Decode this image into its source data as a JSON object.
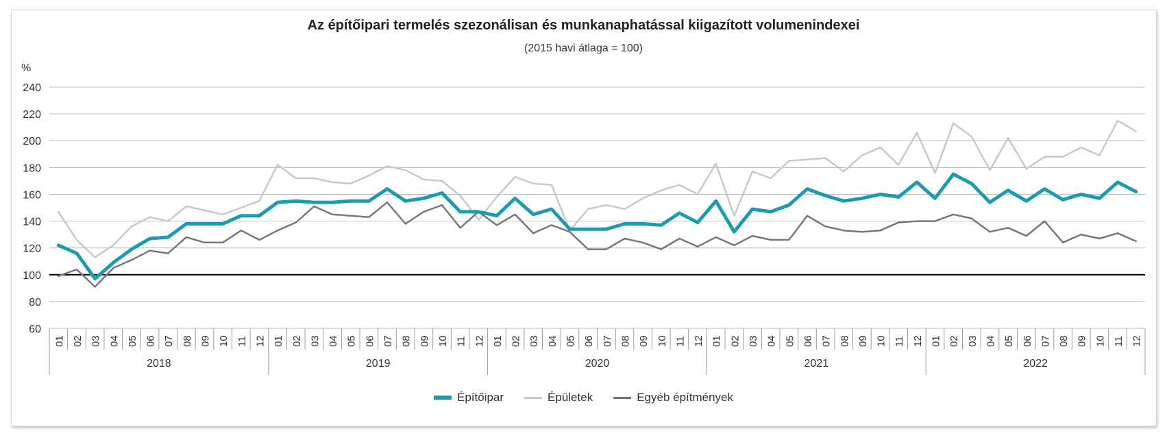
{
  "chart_data": {
    "type": "line",
    "title": "Az építőipari termelés szezonálisan és munkanaphatással kiigazított volumenindexei",
    "subtitle": "(2015 havi átlaga = 100)",
    "ylabel": "%",
    "ylim": [
      60,
      240
    ],
    "yticks": [
      "60",
      "80",
      "100",
      "120",
      "140",
      "160",
      "180",
      "200",
      "220",
      "240"
    ],
    "reference_line": 100,
    "grid": true,
    "legend_position": "bottom",
    "months": [
      "01",
      "02",
      "03",
      "04",
      "05",
      "06",
      "07",
      "08",
      "09",
      "10",
      "11",
      "12"
    ],
    "years": [
      "2018",
      "2019",
      "2020",
      "2021",
      "2022"
    ],
    "series": [
      {
        "name": "Építőipar",
        "color": "#1a9bb0",
        "width": "thick",
        "values": [
          122,
          116,
          97,
          109,
          119,
          127,
          128,
          138,
          138,
          138,
          144,
          144,
          154,
          155,
          154,
          154,
          155,
          155,
          164,
          155,
          157,
          161,
          147,
          147,
          144,
          157,
          145,
          149,
          134,
          134,
          134,
          138,
          138,
          137,
          146,
          139,
          155,
          132,
          149,
          147,
          152,
          164,
          159,
          155,
          157,
          160,
          158,
          169,
          157,
          175,
          168,
          154,
          163,
          155,
          164,
          156,
          160,
          157,
          169,
          162
        ]
      },
      {
        "name": "Épületek",
        "color": "#c8c8c8",
        "width": "thin",
        "values": [
          147,
          126,
          113,
          122,
          136,
          143,
          140,
          151,
          148,
          145,
          150,
          155,
          182,
          172,
          172,
          169,
          168,
          174,
          181,
          178,
          171,
          170,
          159,
          141,
          158,
          173,
          168,
          167,
          133,
          149,
          152,
          149,
          157,
          163,
          167,
          160,
          183,
          144,
          177,
          172,
          185,
          186,
          187,
          177,
          189,
          195,
          182,
          206,
          176,
          213,
          203,
          178,
          202,
          179,
          188,
          188,
          195,
          189,
          215,
          207
        ]
      },
      {
        "name": "Egyéb építmények",
        "color": "#7b7284",
        "width": "thin",
        "values": [
          99,
          104,
          91,
          105,
          111,
          118,
          116,
          128,
          124,
          124,
          133,
          126,
          133,
          139,
          151,
          145,
          144,
          143,
          154,
          138,
          147,
          152,
          135,
          147,
          137,
          145,
          131,
          137,
          132,
          119,
          119,
          127,
          124,
          119,
          127,
          121,
          128,
          122,
          129,
          126,
          126,
          144,
          136,
          133,
          132,
          133,
          139,
          140,
          140,
          145,
          142,
          132,
          135,
          129,
          140,
          124,
          130,
          127,
          131,
          125
        ]
      }
    ]
  }
}
